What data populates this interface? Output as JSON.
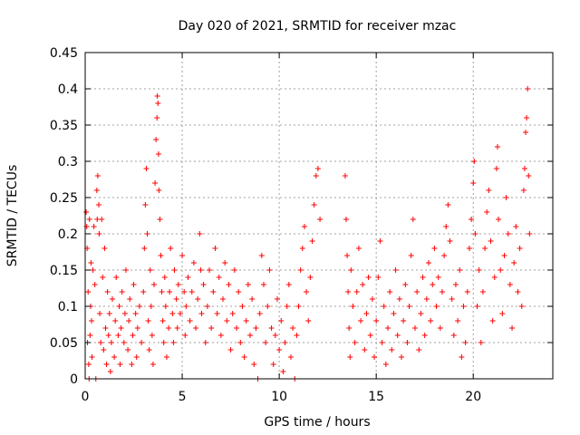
{
  "chart_data": {
    "type": "scatter",
    "title": "Day 020 of 2021, SRMTID for receiver mzac",
    "xlabel": "GPS time / hours",
    "ylabel": "SRMTID / TECUs",
    "xlim": [
      0,
      24.1
    ],
    "ylim": [
      0,
      0.45
    ],
    "xticks": [
      0,
      5,
      10,
      15,
      20
    ],
    "xtick_labels": [
      "0",
      "5",
      "10",
      "15",
      "20"
    ],
    "yticks": [
      0,
      0.05,
      0.1,
      0.15,
      0.2,
      0.25,
      0.3,
      0.35,
      0.4,
      0.45
    ],
    "ytick_labels": [
      "0",
      "0.05",
      "0.1",
      "0.15",
      "0.2",
      "0.25",
      "0.3",
      "0.35",
      "0.4",
      "0.45"
    ],
    "grid": true,
    "legend": "none",
    "marker": "plus",
    "color": "#ff0000",
    "series": [
      {
        "values_xy": [
          [
            0.05,
            0.23
          ],
          [
            0.08,
            0.21
          ],
          [
            0.1,
            0.18
          ],
          [
            0.12,
            0.05
          ],
          [
            0.15,
            0.12
          ],
          [
            0.18,
            0.02
          ],
          [
            0.2,
            0.0
          ],
          [
            0.22,
            0.22
          ],
          [
            0.25,
            0.06
          ],
          [
            0.28,
            0.1
          ],
          [
            0.3,
            0.16
          ],
          [
            0.33,
            0.08
          ],
          [
            0.35,
            0.03
          ],
          [
            0.4,
            0.15
          ],
          [
            0.45,
            0.21
          ],
          [
            0.5,
            0.13
          ],
          [
            0.55,
            0.0
          ],
          [
            0.6,
            0.26
          ],
          [
            0.62,
            0.22
          ],
          [
            0.65,
            0.28
          ],
          [
            0.7,
            0.24
          ],
          [
            0.72,
            0.2
          ],
          [
            0.75,
            0.09
          ],
          [
            0.8,
            0.05
          ],
          [
            0.85,
            0.22
          ],
          [
            0.9,
            0.14
          ],
          [
            0.95,
            0.04
          ],
          [
            1.0,
            0.18
          ],
          [
            1.05,
            0.07
          ],
          [
            1.1,
            0.02
          ],
          [
            1.15,
            0.12
          ],
          [
            1.2,
            0.06
          ],
          [
            1.25,
            0.09
          ],
          [
            1.3,
            0.01
          ],
          [
            1.35,
            0.05
          ],
          [
            1.4,
            0.11
          ],
          [
            1.5,
            0.03
          ],
          [
            1.55,
            0.08
          ],
          [
            1.6,
            0.14
          ],
          [
            1.7,
            0.06
          ],
          [
            1.75,
            0.1
          ],
          [
            1.8,
            0.02
          ],
          [
            1.85,
            0.07
          ],
          [
            1.9,
            0.12
          ],
          [
            2.0,
            0.05
          ],
          [
            2.05,
            0.09
          ],
          [
            2.1,
            0.15
          ],
          [
            2.2,
            0.04
          ],
          [
            2.25,
            0.08
          ],
          [
            2.3,
            0.11
          ],
          [
            2.4,
            0.02
          ],
          [
            2.45,
            0.06
          ],
          [
            2.5,
            0.13
          ],
          [
            2.6,
            0.09
          ],
          [
            2.65,
            0.03
          ],
          [
            2.7,
            0.07
          ],
          [
            2.8,
            0.1
          ],
          [
            2.9,
            0.05
          ],
          [
            3.0,
            0.12
          ],
          [
            3.05,
            0.18
          ],
          [
            3.1,
            0.24
          ],
          [
            3.15,
            0.29
          ],
          [
            3.2,
            0.2
          ],
          [
            3.25,
            0.08
          ],
          [
            3.3,
            0.04
          ],
          [
            3.35,
            0.15
          ],
          [
            3.4,
            0.1
          ],
          [
            3.45,
            0.06
          ],
          [
            3.5,
            0.02
          ],
          [
            3.55,
            0.13
          ],
          [
            3.6,
            0.27
          ],
          [
            3.65,
            0.33
          ],
          [
            3.7,
            0.36
          ],
          [
            3.72,
            0.39
          ],
          [
            3.75,
            0.38
          ],
          [
            3.78,
            0.31
          ],
          [
            3.8,
            0.26
          ],
          [
            3.85,
            0.22
          ],
          [
            3.9,
            0.17
          ],
          [
            3.95,
            0.12
          ],
          [
            4.0,
            0.08
          ],
          [
            4.05,
            0.05
          ],
          [
            4.1,
            0.14
          ],
          [
            4.15,
            0.1
          ],
          [
            4.2,
            0.03
          ],
          [
            4.3,
            0.07
          ],
          [
            4.35,
            0.12
          ],
          [
            4.4,
            0.18
          ],
          [
            4.5,
            0.09
          ],
          [
            4.55,
            0.05
          ],
          [
            4.6,
            0.15
          ],
          [
            4.7,
            0.11
          ],
          [
            4.75,
            0.07
          ],
          [
            4.8,
            0.13
          ],
          [
            4.9,
            0.09
          ],
          [
            5.0,
            0.17
          ],
          [
            5.1,
            0.12
          ],
          [
            5.15,
            0.06
          ],
          [
            5.2,
            0.1
          ],
          [
            5.3,
            0.14
          ],
          [
            5.4,
            0.08
          ],
          [
            5.5,
            0.12
          ],
          [
            5.6,
            0.16
          ],
          [
            5.7,
            0.07
          ],
          [
            5.8,
            0.11
          ],
          [
            5.9,
            0.2
          ],
          [
            5.95,
            0.15
          ],
          [
            6.0,
            0.09
          ],
          [
            6.1,
            0.13
          ],
          [
            6.2,
            0.05
          ],
          [
            6.3,
            0.1
          ],
          [
            6.4,
            0.15
          ],
          [
            6.5,
            0.07
          ],
          [
            6.6,
            0.12
          ],
          [
            6.7,
            0.18
          ],
          [
            6.8,
            0.09
          ],
          [
            6.9,
            0.14
          ],
          [
            7.0,
            0.06
          ],
          [
            7.1,
            0.11
          ],
          [
            7.2,
            0.16
          ],
          [
            7.3,
            0.08
          ],
          [
            7.4,
            0.13
          ],
          [
            7.5,
            0.04
          ],
          [
            7.6,
            0.09
          ],
          [
            7.7,
            0.15
          ],
          [
            7.8,
            0.07
          ],
          [
            7.9,
            0.12
          ],
          [
            8.0,
            0.05
          ],
          [
            8.1,
            0.1
          ],
          [
            8.2,
            0.03
          ],
          [
            8.3,
            0.08
          ],
          [
            8.4,
            0.13
          ],
          [
            8.5,
            0.06
          ],
          [
            8.6,
            0.11
          ],
          [
            8.7,
            0.02
          ],
          [
            8.8,
            0.07
          ],
          [
            8.9,
            0.0
          ],
          [
            9.0,
            0.09
          ],
          [
            9.1,
            0.17
          ],
          [
            9.2,
            0.13
          ],
          [
            9.3,
            0.05
          ],
          [
            9.4,
            0.1
          ],
          [
            9.5,
            0.15
          ],
          [
            9.6,
            0.07
          ],
          [
            9.7,
            0.02
          ],
          [
            9.8,
            0.06
          ],
          [
            9.9,
            0.11
          ],
          [
            10.0,
            0.04
          ],
          [
            10.1,
            0.08
          ],
          [
            10.2,
            0.01
          ],
          [
            10.3,
            0.05
          ],
          [
            10.4,
            0.1
          ],
          [
            10.5,
            0.13
          ],
          [
            10.6,
            0.03
          ],
          [
            10.7,
            0.07
          ],
          [
            10.8,
            0.0
          ],
          [
            10.9,
            0.06
          ],
          [
            11.0,
            0.1
          ],
          [
            11.1,
            0.15
          ],
          [
            11.2,
            0.18
          ],
          [
            11.3,
            0.21
          ],
          [
            11.4,
            0.12
          ],
          [
            11.5,
            0.08
          ],
          [
            11.6,
            0.14
          ],
          [
            11.7,
            0.19
          ],
          [
            11.8,
            0.24
          ],
          [
            11.9,
            0.28
          ],
          [
            12.0,
            0.29
          ],
          [
            12.1,
            0.22
          ],
          [
            13.4,
            0.28
          ],
          [
            13.45,
            0.22
          ],
          [
            13.5,
            0.17
          ],
          [
            13.55,
            0.12
          ],
          [
            13.6,
            0.07
          ],
          [
            13.65,
            0.03
          ],
          [
            13.7,
            0.15
          ],
          [
            13.8,
            0.1
          ],
          [
            13.9,
            0.05
          ],
          [
            14.0,
            0.12
          ],
          [
            14.1,
            0.18
          ],
          [
            14.2,
            0.08
          ],
          [
            14.3,
            0.13
          ],
          [
            14.4,
            0.04
          ],
          [
            14.5,
            0.09
          ],
          [
            14.6,
            0.14
          ],
          [
            14.7,
            0.06
          ],
          [
            14.8,
            0.11
          ],
          [
            14.9,
            0.03
          ],
          [
            15.0,
            0.08
          ],
          [
            15.1,
            0.14
          ],
          [
            15.2,
            0.19
          ],
          [
            15.3,
            0.05
          ],
          [
            15.4,
            0.1
          ],
          [
            15.5,
            0.02
          ],
          [
            15.6,
            0.07
          ],
          [
            15.7,
            0.12
          ],
          [
            15.8,
            0.04
          ],
          [
            15.9,
            0.09
          ],
          [
            16.0,
            0.15
          ],
          [
            16.1,
            0.06
          ],
          [
            16.2,
            0.11
          ],
          [
            16.3,
            0.03
          ],
          [
            16.4,
            0.08
          ],
          [
            16.5,
            0.13
          ],
          [
            16.6,
            0.05
          ],
          [
            16.7,
            0.1
          ],
          [
            16.8,
            0.17
          ],
          [
            16.9,
            0.22
          ],
          [
            17.0,
            0.07
          ],
          [
            17.1,
            0.12
          ],
          [
            17.2,
            0.04
          ],
          [
            17.3,
            0.09
          ],
          [
            17.4,
            0.14
          ],
          [
            17.5,
            0.06
          ],
          [
            17.6,
            0.11
          ],
          [
            17.7,
            0.16
          ],
          [
            17.8,
            0.08
          ],
          [
            17.9,
            0.13
          ],
          [
            18.0,
            0.18
          ],
          [
            18.1,
            0.1
          ],
          [
            18.2,
            0.14
          ],
          [
            18.3,
            0.07
          ],
          [
            18.4,
            0.12
          ],
          [
            18.5,
            0.17
          ],
          [
            18.6,
            0.21
          ],
          [
            18.7,
            0.24
          ],
          [
            18.8,
            0.19
          ],
          [
            18.9,
            0.11
          ],
          [
            19.0,
            0.06
          ],
          [
            19.1,
            0.13
          ],
          [
            19.2,
            0.08
          ],
          [
            19.3,
            0.15
          ],
          [
            19.4,
            0.03
          ],
          [
            19.5,
            0.1
          ],
          [
            19.6,
            0.05
          ],
          [
            19.7,
            0.12
          ],
          [
            19.8,
            0.18
          ],
          [
            19.9,
            0.22
          ],
          [
            20.0,
            0.27
          ],
          [
            20.05,
            0.3
          ],
          [
            20.1,
            0.2
          ],
          [
            20.2,
            0.1
          ],
          [
            20.3,
            0.15
          ],
          [
            20.4,
            0.05
          ],
          [
            20.5,
            0.12
          ],
          [
            20.6,
            0.18
          ],
          [
            20.7,
            0.23
          ],
          [
            20.8,
            0.26
          ],
          [
            20.9,
            0.19
          ],
          [
            21.0,
            0.08
          ],
          [
            21.1,
            0.14
          ],
          [
            21.2,
            0.29
          ],
          [
            21.25,
            0.32
          ],
          [
            21.3,
            0.22
          ],
          [
            21.4,
            0.15
          ],
          [
            21.5,
            0.09
          ],
          [
            21.6,
            0.17
          ],
          [
            21.7,
            0.25
          ],
          [
            21.8,
            0.2
          ],
          [
            21.9,
            0.13
          ],
          [
            22.0,
            0.07
          ],
          [
            22.1,
            0.16
          ],
          [
            22.2,
            0.21
          ],
          [
            22.3,
            0.12
          ],
          [
            22.4,
            0.18
          ],
          [
            22.5,
            0.1
          ],
          [
            22.6,
            0.26
          ],
          [
            22.65,
            0.29
          ],
          [
            22.7,
            0.34
          ],
          [
            22.75,
            0.36
          ],
          [
            22.8,
            0.4
          ],
          [
            22.85,
            0.28
          ],
          [
            22.9,
            0.2
          ]
        ]
      }
    ]
  }
}
